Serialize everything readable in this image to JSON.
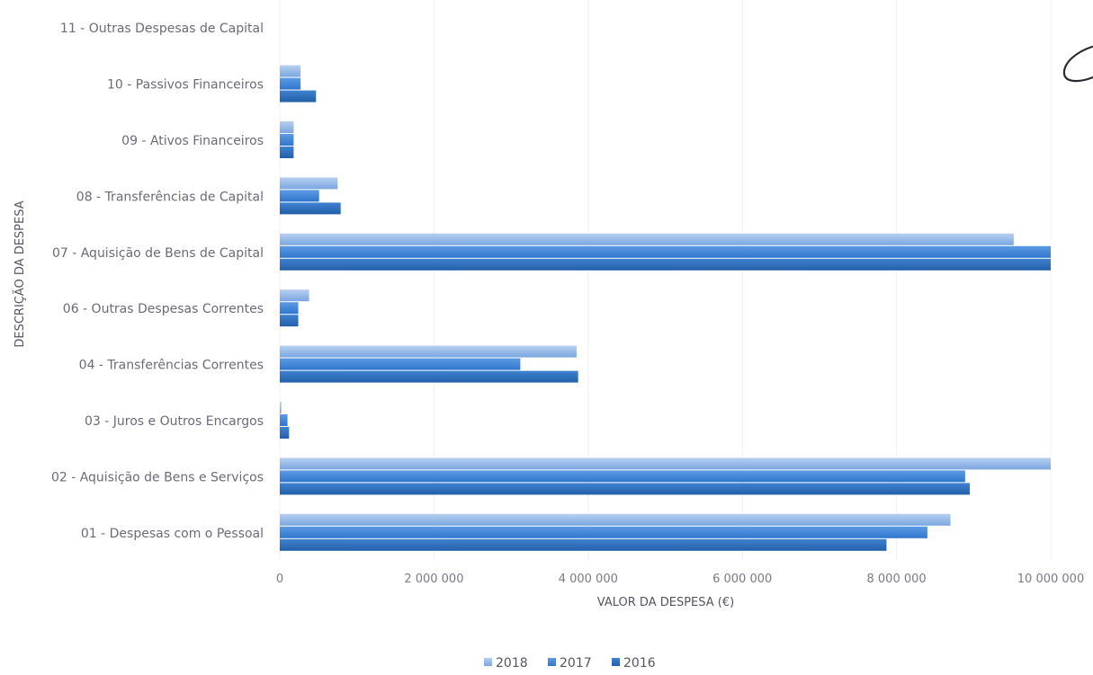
{
  "chart_data": {
    "type": "bar",
    "orientation": "horizontal",
    "categories": [
      "01 - Despesas com o Pessoal",
      "02 - Aquisição de Bens e Serviços",
      "03 - Juros e Outros Encargos",
      "04 - Transferências Correntes",
      "06 - Outras Despesas Correntes",
      "07 - Aquisição de Bens de Capital",
      "08 - Transferências de Capital",
      "09 - Ativos Financeiros",
      "10 - Passivos Financeiros",
      "11 - Outras Despesas de Capital"
    ],
    "series": [
      {
        "name": "2018",
        "color": "#8fb4e6",
        "values": [
          8700000,
          10000000,
          20000,
          3850000,
          380000,
          9520000,
          750000,
          180000,
          270000,
          0
        ]
      },
      {
        "name": "2017",
        "color": "#3f86d8",
        "values": [
          8400000,
          8890000,
          100000,
          3120000,
          240000,
          10000000,
          510000,
          180000,
          270000,
          0
        ]
      },
      {
        "name": "2016",
        "color": "#2c6fbd",
        "values": [
          7870000,
          8950000,
          120000,
          3870000,
          240000,
          10000000,
          790000,
          180000,
          470000,
          0
        ]
      }
    ],
    "xticks": [
      "0",
      "2 000 000",
      "4 000 000",
      "6 000 000",
      "8 000 000",
      "10 000 000"
    ],
    "xlim": [
      0,
      10000000
    ],
    "xlabel": "VALOR DA DESPESA (€)",
    "ylabel": "DESCRIÇÃO DA DESPESA",
    "legend_position": "bottom",
    "grid": true
  }
}
